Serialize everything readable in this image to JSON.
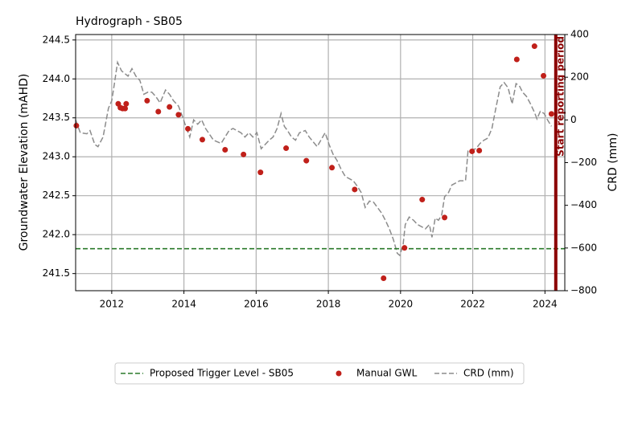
{
  "chart_data": {
    "type": "line",
    "title": "Hydrograph - SB05",
    "ylabel": "Groundwater Elevation (mAHD)",
    "y2label": "CRD (mm)",
    "xlim": [
      2011.0,
      2024.55
    ],
    "xticks": [
      2012,
      2014,
      2016,
      2018,
      2020,
      2022,
      2024
    ],
    "ylim": [
      241.28,
      244.57
    ],
    "yticks": [
      241.5,
      {
        "value": 242,
        "label": "242.0"
      },
      242.5,
      {
        "value": 243,
        "label": "243.0"
      },
      243.5,
      {
        "value": 244,
        "label": "244.0"
      },
      244.5
    ],
    "y2lim": [
      -800,
      400
    ],
    "y2ticks": [
      {
        "value": -800,
        "label": "−800"
      },
      {
        "value": -600,
        "label": "−600"
      },
      {
        "value": -400,
        "label": "−400"
      },
      {
        "value": -200,
        "label": "−200"
      },
      0,
      200,
      400
    ],
    "grid": true,
    "legend": "bottom",
    "annotation": {
      "x": 2024.3,
      "label": "Start reporting period",
      "color": "#8b0000"
    },
    "series": [
      {
        "name": "Proposed Trigger Level - SB05",
        "type": "hline",
        "color": "#2a7a2a",
        "value": 241.82
      },
      {
        "name": "Manual GWL",
        "type": "scatter",
        "color": "#c0201a",
        "x": [
          2011.02,
          2012.18,
          2012.24,
          2012.3,
          2012.37,
          2012.4,
          2012.98,
          2013.29,
          2013.6,
          2013.85,
          2014.11,
          2014.51,
          2015.14,
          2015.65,
          2016.12,
          2016.83,
          2017.39,
          2018.1,
          2018.73,
          2019.53,
          2020.11,
          2020.6,
          2021.22,
          2021.98,
          2022.18,
          2023.22,
          2023.71,
          2023.96,
          2024.18
        ],
        "values": [
          243.4,
          243.68,
          243.63,
          243.62,
          243.62,
          243.68,
          243.72,
          243.58,
          243.64,
          243.54,
          243.36,
          243.22,
          243.09,
          243.03,
          242.8,
          243.11,
          242.95,
          242.86,
          242.58,
          241.44,
          241.83,
          242.45,
          242.22,
          243.07,
          243.08,
          244.25,
          244.42,
          244.04,
          243.55
        ]
      },
      {
        "name": "CRD (mm)",
        "type": "line",
        "axis": "y2",
        "color": "#8c8c8c",
        "x": [
          2011.0,
          2011.13,
          2011.31,
          2011.4,
          2011.53,
          2011.62,
          2011.76,
          2011.91,
          2012.0,
          2012.07,
          2012.16,
          2012.27,
          2012.45,
          2012.56,
          2012.67,
          2012.78,
          2012.89,
          2013.0,
          2013.11,
          2013.22,
          2013.34,
          2013.49,
          2013.6,
          2013.71,
          2013.85,
          2013.96,
          2014.05,
          2014.16,
          2014.27,
          2014.38,
          2014.49,
          2014.6,
          2014.82,
          2015.03,
          2015.25,
          2015.36,
          2015.58,
          2015.69,
          2015.8,
          2015.91,
          2016.02,
          2016.14,
          2016.25,
          2016.36,
          2016.47,
          2016.58,
          2016.69,
          2016.78,
          2016.87,
          2016.98,
          2017.09,
          2017.2,
          2017.36,
          2017.47,
          2017.69,
          2017.91,
          2018.02,
          2018.13,
          2018.24,
          2018.35,
          2018.47,
          2018.69,
          2018.8,
          2018.91,
          2019.02,
          2019.14,
          2019.25,
          2019.36,
          2019.47,
          2019.58,
          2019.69,
          2019.8,
          2019.91,
          2019.98,
          2020.07,
          2020.13,
          2020.24,
          2020.36,
          2020.47,
          2020.69,
          2020.8,
          2020.87,
          2020.96,
          2021.05,
          2021.14,
          2021.22,
          2021.33,
          2021.42,
          2021.53,
          2021.64,
          2021.8,
          2021.87,
          2022.09,
          2022.2,
          2022.31,
          2022.42,
          2022.53,
          2022.64,
          2022.76,
          2022.87,
          2022.98,
          2023.09,
          2023.2,
          2023.29,
          2023.38,
          2023.49,
          2023.6,
          2023.71,
          2023.78,
          2023.87,
          2023.98,
          2024.07,
          2024.18
        ],
        "values": [
          0,
          -60,
          -65,
          -50,
          -115,
          -125,
          -80,
          55,
          90,
          165,
          270,
          230,
          205,
          240,
          205,
          185,
          120,
          130,
          130,
          110,
          80,
          140,
          120,
          90,
          65,
          15,
          -30,
          -80,
          0,
          -20,
          0,
          -40,
          -95,
          -110,
          -50,
          -40,
          -60,
          -80,
          -60,
          -80,
          -60,
          -135,
          -115,
          -95,
          -80,
          -40,
          30,
          -30,
          -50,
          -80,
          -95,
          -60,
          -50,
          -80,
          -125,
          -60,
          -115,
          -160,
          -190,
          -230,
          -265,
          -285,
          -310,
          -340,
          -410,
          -380,
          -385,
          -410,
          -435,
          -470,
          -510,
          -560,
          -625,
          -635,
          -585,
          -490,
          -455,
          -470,
          -490,
          -510,
          -490,
          -550,
          -460,
          -470,
          -445,
          -360,
          -340,
          -305,
          -295,
          -285,
          -285,
          -145,
          -135,
          -110,
          -95,
          -85,
          -40,
          55,
          155,
          175,
          150,
          75,
          170,
          160,
          130,
          110,
          75,
          35,
          5,
          40,
          30,
          0,
          -30
        ]
      }
    ]
  }
}
